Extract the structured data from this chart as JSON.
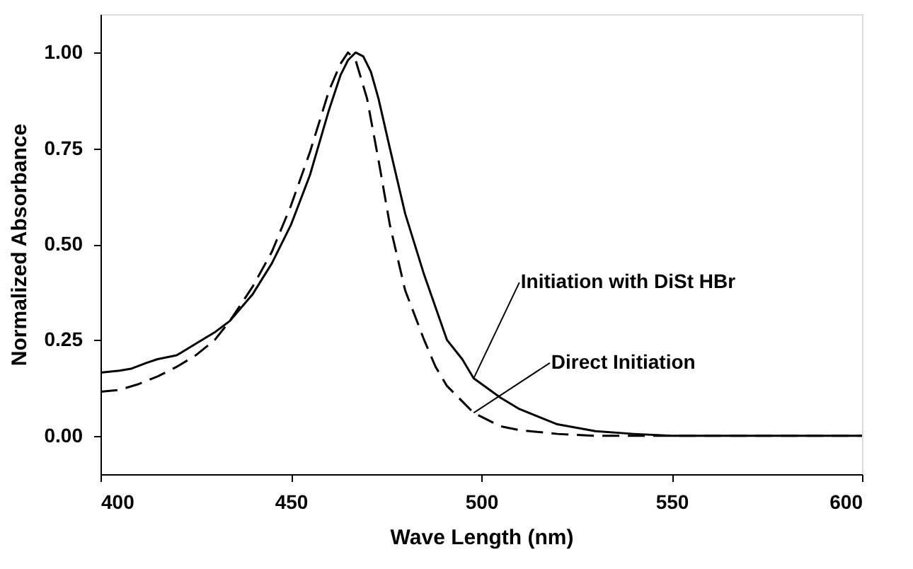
{
  "chart_data": {
    "type": "line",
    "xlabel": "Wave Length (nm)",
    "ylabel": "Normalized Absorbance",
    "xlim": [
      400,
      600
    ],
    "xticks": [
      400,
      450,
      500,
      550,
      600
    ],
    "ylim": [
      -0.1,
      1.1
    ],
    "yticks": [
      {
        "value": 0,
        "label": "0.00"
      },
      0.25,
      {
        "value": 0.5,
        "label": "0.50"
      },
      0.75,
      {
        "value": 1,
        "label": "1.00"
      }
    ],
    "grid": false,
    "legend": false,
    "marker": "none",
    "series": [
      {
        "color": "#000000",
        "line_style": "solid",
        "x": [
          400,
          405,
          408,
          412,
          415,
          420,
          425,
          430,
          434,
          440,
          445,
          450,
          455,
          460,
          463,
          465,
          467,
          469,
          471,
          473,
          476,
          480,
          485,
          491,
          495,
          498,
          505,
          510,
          520,
          530,
          540,
          550,
          575,
          600
        ],
        "values": [
          0.165,
          0.17,
          0.175,
          0.19,
          0.2,
          0.21,
          0.24,
          0.27,
          0.3,
          0.37,
          0.45,
          0.55,
          0.68,
          0.85,
          0.94,
          0.98,
          1.0,
          0.99,
          0.95,
          0.88,
          0.75,
          0.58,
          0.42,
          0.25,
          0.2,
          0.15,
          0.1,
          0.07,
          0.03,
          0.012,
          0.005,
          0.0,
          0.0,
          0.0
        ]
      },
      {
        "color": "#000000",
        "line_style": "dashed",
        "x": [
          400,
          405,
          410,
          415,
          420,
          425,
          430,
          434,
          440,
          445,
          450,
          455,
          460,
          463,
          465,
          467,
          470,
          473,
          476,
          480,
          485,
          488,
          491,
          495,
          498,
          505,
          510,
          520,
          530,
          550,
          575,
          600
        ],
        "values": [
          0.115,
          0.12,
          0.135,
          0.155,
          0.18,
          0.21,
          0.25,
          0.3,
          0.39,
          0.48,
          0.6,
          0.74,
          0.9,
          0.97,
          1.0,
          0.98,
          0.88,
          0.72,
          0.55,
          0.38,
          0.25,
          0.18,
          0.13,
          0.09,
          0.06,
          0.025,
          0.015,
          0.005,
          0.0,
          0.0,
          0.0,
          0.0
        ]
      }
    ],
    "annotations": [
      {
        "text": "Initiation with DiSt HBr",
        "x": 498,
        "y": 0.15
      },
      {
        "text": "Direct Initiation",
        "x": 498,
        "y": 0.06
      }
    ]
  }
}
